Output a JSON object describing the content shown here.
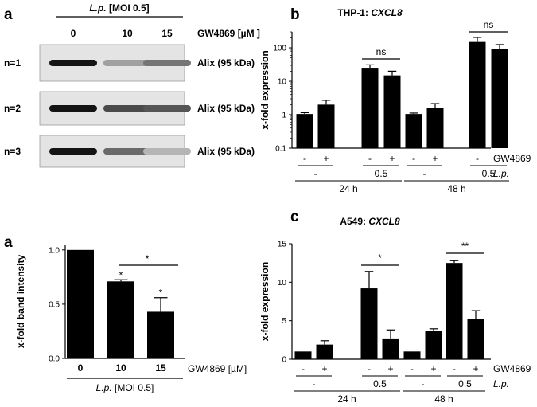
{
  "panel_labels": {
    "a_top": "a",
    "a_bottom": "a",
    "b": "b",
    "c": "c"
  },
  "blot": {
    "header_prefix": "L.p.",
    "header_suffix": "[MOI 0.5]",
    "doses": [
      "0",
      "10",
      "15"
    ],
    "treatment_label": "GW4869 [µM ]",
    "rows": [
      {
        "n": "n=1",
        "label": "Alix (95 kDa)",
        "bands": [
          1.0,
          0.35,
          0.55
        ]
      },
      {
        "n": "n=2",
        "label": "Alix (95 kDa)",
        "bands": [
          1.0,
          0.75,
          0.7
        ]
      },
      {
        "n": "n=3",
        "label": "Alix (95 kDa)",
        "bands": [
          1.0,
          0.6,
          0.25
        ]
      }
    ]
  },
  "chart_data": [
    {
      "id": "band-intensity",
      "type": "bar",
      "title": "",
      "ylabel": "x-fold band intensity",
      "categories": [
        "0",
        "10",
        "15"
      ],
      "values": [
        1.0,
        0.71,
        0.43
      ],
      "errors": [
        0,
        0.015,
        0.13
      ],
      "ylim": [
        0,
        1.05
      ],
      "yticks": [
        0.0,
        0.5,
        1.0
      ],
      "ytick_labels": [
        "0.0",
        "0.5",
        "1.0"
      ],
      "treatment_label": "GW4869 [µM]",
      "group_label_prefix": "L.p.",
      "group_label_suffix": "[MOI 0.5]",
      "point_stars": [
        "",
        "*",
        "*"
      ],
      "comparisons": [
        {
          "from": 1,
          "to": 2,
          "label": "*"
        }
      ]
    },
    {
      "id": "thp1-cxcl8",
      "type": "bar",
      "title_prefix": "THP-1:",
      "title_gene": "CXCL8",
      "ylabel": "x-fold expression",
      "scale": "log",
      "values": [
        1.05,
        2.0,
        24,
        15,
        1.05,
        1.6,
        150,
        92
      ],
      "errors_upper": [
        1.15,
        2.7,
        31,
        20,
        1.12,
        2.15,
        205,
        125
      ],
      "ylim": [
        0.1,
        300
      ],
      "yticks": [
        0.1,
        1,
        10,
        100
      ],
      "ytick_labels": [
        "0.1",
        "1",
        "10",
        "100"
      ],
      "gw4869_marks": [
        "-",
        "+",
        "-",
        "+",
        "-",
        "+",
        "-",
        "+"
      ],
      "gw4869_label": "GW4869",
      "lp_marks": [
        "-",
        "0.5",
        "-",
        "0.5"
      ],
      "lp_label": "L.p.",
      "time_labels": [
        "24 h",
        "48 h"
      ],
      "comparisons": [
        {
          "from": 2,
          "to": 3,
          "label": "ns"
        },
        {
          "from": 6,
          "to": 7,
          "label": "ns"
        }
      ]
    },
    {
      "id": "a549-cxcl8",
      "type": "bar",
      "title_prefix": "A549:",
      "title_gene": "CXCL8",
      "ylabel": "x-fold expression",
      "values": [
        1.0,
        1.9,
        9.2,
        2.7,
        1.0,
        3.7,
        12.5,
        5.2
      ],
      "errors": [
        0,
        0.5,
        2.2,
        1.1,
        0,
        0.25,
        0.3,
        1.1
      ],
      "ylim": [
        0,
        15
      ],
      "yticks": [
        0,
        5,
        10,
        15
      ],
      "ytick_labels": [
        "0",
        "5",
        "10",
        "15"
      ],
      "gw4869_marks": [
        "-",
        "+",
        "-",
        "+",
        "-",
        "+",
        "-",
        "+"
      ],
      "gw4869_label": "GW4869",
      "lp_marks": [
        "-",
        "0.5",
        "-",
        "0.5"
      ],
      "lp_label": "L.p.",
      "time_labels": [
        "24 h",
        "48 h"
      ],
      "comparisons": [
        {
          "from": 2,
          "to": 3,
          "label": "*"
        },
        {
          "from": 6,
          "to": 7,
          "label": "**"
        }
      ]
    }
  ]
}
